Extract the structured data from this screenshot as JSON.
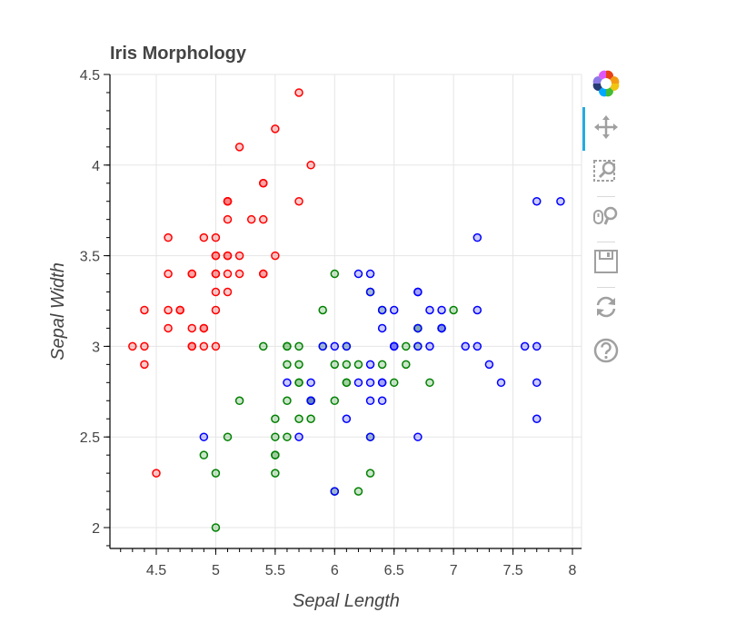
{
  "chart_data": {
    "type": "scatter",
    "title": "Iris Morphology",
    "xlabel": "Sepal Length",
    "ylabel": "Sepal Width",
    "xlim": [
      4.12,
      8.08
    ],
    "ylim": [
      1.88,
      4.5
    ],
    "xticks": [
      "4.5",
      "5",
      "5.5",
      "6",
      "6.5",
      "7",
      "7.5",
      "8"
    ],
    "yticks": [
      "2",
      "2.5",
      "3",
      "3.5",
      "4",
      "4.5"
    ],
    "grid": true,
    "series": [
      {
        "color": "#ff0000",
        "points": [
          [
            5.1,
            3.5
          ],
          [
            4.9,
            3.0
          ],
          [
            4.7,
            3.2
          ],
          [
            4.6,
            3.1
          ],
          [
            5.0,
            3.6
          ],
          [
            5.4,
            3.9
          ],
          [
            4.6,
            3.4
          ],
          [
            5.0,
            3.4
          ],
          [
            4.4,
            2.9
          ],
          [
            4.9,
            3.1
          ],
          [
            5.4,
            3.7
          ],
          [
            4.8,
            3.4
          ],
          [
            4.8,
            3.0
          ],
          [
            4.3,
            3.0
          ],
          [
            5.8,
            4.0
          ],
          [
            5.7,
            4.4
          ],
          [
            5.4,
            3.9
          ],
          [
            5.1,
            3.5
          ],
          [
            5.7,
            3.8
          ],
          [
            5.1,
            3.8
          ],
          [
            5.4,
            3.4
          ],
          [
            5.1,
            3.7
          ],
          [
            4.6,
            3.6
          ],
          [
            5.1,
            3.3
          ],
          [
            4.8,
            3.4
          ],
          [
            5.0,
            3.0
          ],
          [
            5.0,
            3.4
          ],
          [
            5.2,
            3.5
          ],
          [
            5.2,
            3.4
          ],
          [
            4.7,
            3.2
          ],
          [
            4.8,
            3.1
          ],
          [
            5.4,
            3.4
          ],
          [
            5.2,
            4.1
          ],
          [
            5.5,
            4.2
          ],
          [
            4.9,
            3.1
          ],
          [
            5.0,
            3.2
          ],
          [
            5.5,
            3.5
          ],
          [
            4.9,
            3.6
          ],
          [
            4.4,
            3.0
          ],
          [
            5.1,
            3.4
          ],
          [
            5.0,
            3.5
          ],
          [
            4.5,
            2.3
          ],
          [
            4.4,
            3.2
          ],
          [
            5.0,
            3.5
          ],
          [
            5.1,
            3.8
          ],
          [
            4.8,
            3.0
          ],
          [
            5.1,
            3.8
          ],
          [
            4.6,
            3.2
          ],
          [
            5.3,
            3.7
          ],
          [
            5.0,
            3.3
          ]
        ]
      },
      {
        "color": "#008000",
        "points": [
          [
            7.0,
            3.2
          ],
          [
            6.4,
            3.2
          ],
          [
            6.9,
            3.1
          ],
          [
            5.5,
            2.3
          ],
          [
            6.5,
            2.8
          ],
          [
            5.7,
            2.8
          ],
          [
            6.3,
            3.3
          ],
          [
            4.9,
            2.4
          ],
          [
            6.6,
            2.9
          ],
          [
            5.2,
            2.7
          ],
          [
            5.0,
            2.0
          ],
          [
            5.9,
            3.0
          ],
          [
            6.0,
            2.2
          ],
          [
            6.1,
            2.9
          ],
          [
            5.6,
            2.9
          ],
          [
            6.7,
            3.1
          ],
          [
            5.6,
            3.0
          ],
          [
            5.8,
            2.7
          ],
          [
            6.2,
            2.2
          ],
          [
            5.6,
            2.5
          ],
          [
            5.9,
            3.2
          ],
          [
            6.1,
            2.8
          ],
          [
            6.3,
            2.5
          ],
          [
            6.1,
            2.8
          ],
          [
            6.4,
            2.9
          ],
          [
            6.6,
            3.0
          ],
          [
            6.8,
            2.8
          ],
          [
            6.7,
            3.0
          ],
          [
            6.0,
            2.9
          ],
          [
            5.7,
            2.6
          ],
          [
            5.5,
            2.4
          ],
          [
            5.5,
            2.4
          ],
          [
            5.8,
            2.7
          ],
          [
            6.0,
            2.7
          ],
          [
            5.4,
            3.0
          ],
          [
            6.0,
            3.4
          ],
          [
            6.7,
            3.1
          ],
          [
            6.3,
            2.3
          ],
          [
            5.6,
            3.0
          ],
          [
            5.5,
            2.5
          ],
          [
            5.5,
            2.6
          ],
          [
            6.1,
            3.0
          ],
          [
            5.8,
            2.6
          ],
          [
            5.0,
            2.3
          ],
          [
            5.6,
            2.7
          ],
          [
            5.7,
            3.0
          ],
          [
            5.7,
            2.9
          ],
          [
            6.2,
            2.9
          ],
          [
            5.1,
            2.5
          ],
          [
            5.7,
            2.8
          ]
        ]
      },
      {
        "color": "#0000ff",
        "points": [
          [
            6.3,
            3.3
          ],
          [
            5.8,
            2.7
          ],
          [
            7.1,
            3.0
          ],
          [
            6.3,
            2.9
          ],
          [
            6.5,
            3.0
          ],
          [
            7.6,
            3.0
          ],
          [
            4.9,
            2.5
          ],
          [
            7.3,
            2.9
          ],
          [
            6.7,
            2.5
          ],
          [
            7.2,
            3.6
          ],
          [
            6.5,
            3.2
          ],
          [
            6.4,
            2.7
          ],
          [
            6.8,
            3.0
          ],
          [
            5.7,
            2.5
          ],
          [
            5.8,
            2.8
          ],
          [
            6.4,
            3.2
          ],
          [
            6.5,
            3.0
          ],
          [
            7.7,
            3.8
          ],
          [
            7.7,
            2.6
          ],
          [
            6.0,
            2.2
          ],
          [
            6.9,
            3.2
          ],
          [
            5.6,
            2.8
          ],
          [
            7.7,
            2.8
          ],
          [
            6.3,
            2.7
          ],
          [
            6.7,
            3.3
          ],
          [
            7.2,
            3.2
          ],
          [
            6.2,
            2.8
          ],
          [
            6.1,
            3.0
          ],
          [
            6.4,
            2.8
          ],
          [
            7.2,
            3.0
          ],
          [
            7.4,
            2.8
          ],
          [
            7.9,
            3.8
          ],
          [
            6.4,
            2.8
          ],
          [
            6.3,
            2.8
          ],
          [
            6.1,
            2.6
          ],
          [
            7.7,
            3.0
          ],
          [
            6.3,
            3.4
          ],
          [
            6.4,
            3.1
          ],
          [
            6.0,
            3.0
          ],
          [
            6.9,
            3.1
          ],
          [
            6.7,
            3.1
          ],
          [
            6.9,
            3.1
          ],
          [
            5.8,
            2.7
          ],
          [
            6.8,
            3.2
          ],
          [
            6.7,
            3.3
          ],
          [
            6.7,
            3.0
          ],
          [
            6.3,
            2.5
          ],
          [
            6.5,
            3.0
          ],
          [
            6.2,
            3.4
          ],
          [
            5.9,
            3.0
          ]
        ]
      }
    ]
  },
  "toolbar": {
    "items": [
      "bokeh-logo-icon",
      "pan-icon",
      "box-zoom-icon",
      "wheel-zoom-icon",
      "save-icon",
      "reset-icon",
      "help-icon"
    ],
    "active_color": "#26aae1",
    "icon_color": "#a0a0a0"
  }
}
